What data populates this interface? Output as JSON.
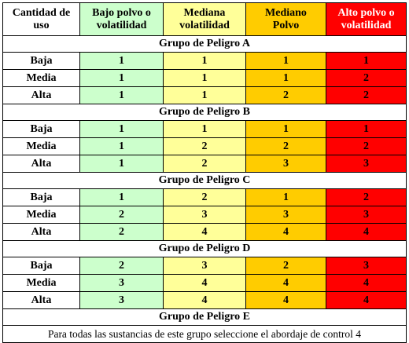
{
  "header": {
    "usage": [
      "Cantidad de",
      "uso"
    ],
    "columns": [
      {
        "lines": [
          "Bajo polvo o",
          "volatilidad"
        ]
      },
      {
        "lines": [
          "Mediana",
          "volatilidad"
        ]
      },
      {
        "lines": [
          "Mediano",
          "Polvo"
        ]
      },
      {
        "lines": [
          "Alto polvo o",
          "volatilidad"
        ]
      }
    ]
  },
  "colors": {
    "green": "#ccffcc",
    "yellow": "#ffff99",
    "orange": "#ffcc00",
    "red": "#ff0000"
  },
  "groups": [
    {
      "title": "Grupo de Peligro A",
      "rows": [
        {
          "level": "Baja",
          "values": [
            "1",
            "1",
            "1",
            "1"
          ]
        },
        {
          "level": "Media",
          "values": [
            "1",
            "1",
            "1",
            "2"
          ]
        },
        {
          "level": "Alta",
          "values": [
            "1",
            "1",
            "2",
            "2"
          ]
        }
      ]
    },
    {
      "title": "Grupo de Peligro B",
      "rows": [
        {
          "level": "Baja",
          "values": [
            "1",
            "1",
            "1",
            "1"
          ]
        },
        {
          "level": "Media",
          "values": [
            "1",
            "2",
            "2",
            "2"
          ]
        },
        {
          "level": "Alta",
          "values": [
            "1",
            "2",
            "3",
            "3"
          ]
        }
      ]
    },
    {
      "title": "Grupo de Peligro C",
      "rows": [
        {
          "level": "Baja",
          "values": [
            "1",
            "2",
            "1",
            "2"
          ]
        },
        {
          "level": "Media",
          "values": [
            "2",
            "3",
            "3",
            "3"
          ]
        },
        {
          "level": "Alta",
          "values": [
            "2",
            "4",
            "4",
            "4"
          ]
        }
      ]
    },
    {
      "title": "Grupo de Peligro D",
      "rows": [
        {
          "level": "Baja",
          "values": [
            "2",
            "3",
            "2",
            "3"
          ]
        },
        {
          "level": "Media",
          "values": [
            "3",
            "4",
            "4",
            "4"
          ]
        },
        {
          "level": "Alta",
          "values": [
            "3",
            "4",
            "4",
            "4"
          ]
        }
      ]
    }
  ],
  "group_e": {
    "title": "Grupo de Peligro E",
    "note": "Para todas las sustancias de este grupo seleccione el abordaje de control 4"
  }
}
